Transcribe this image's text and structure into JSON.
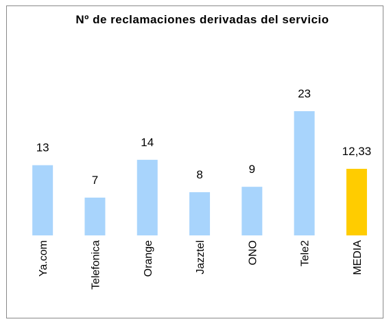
{
  "chart_data": {
    "type": "bar",
    "title": "Nº de reclamaciones derivadas del servicio",
    "categories": [
      "Ya.com",
      "Telefonica",
      "Orange",
      "Jazztel",
      "ONO",
      "Tele2",
      "MEDIA"
    ],
    "values": [
      13,
      7,
      14,
      8,
      9,
      23,
      12.33
    ],
    "value_labels": [
      "13",
      "7",
      "14",
      "8",
      "9",
      "23",
      "12,33"
    ],
    "colors": [
      "#a8d4fc",
      "#a8d4fc",
      "#a8d4fc",
      "#a8d4fc",
      "#a8d4fc",
      "#a8d4fc",
      "#ffcc00"
    ],
    "grid": false
  }
}
